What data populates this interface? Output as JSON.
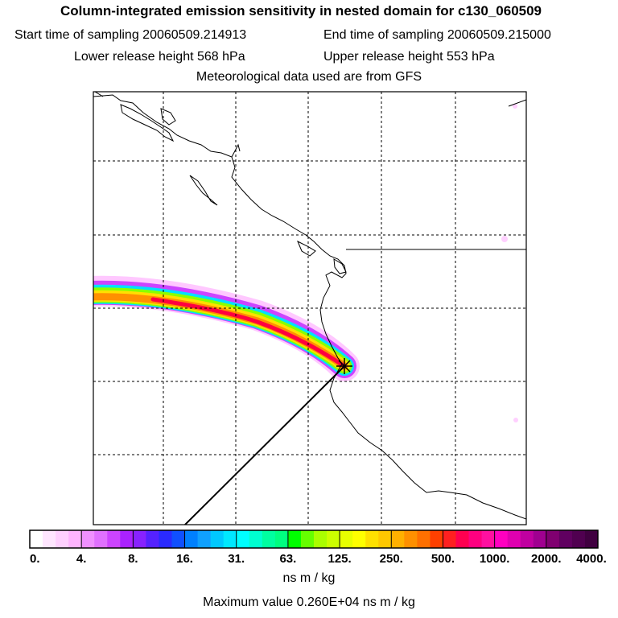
{
  "header": {
    "title": "Column-integrated emission sensitivity in nested domain for c130_060509",
    "start_sampling": "Start time of sampling 20060509.214913",
    "end_sampling": "End time of sampling 20060509.215000",
    "lower_release": "Lower release height  568 hPa",
    "upper_release": "Upper release height  553 hPa",
    "met_data": "Meteorological data used are from GFS"
  },
  "colors": {
    "coastline": "#000000",
    "grid": "#000000",
    "plume_core": "#ff0040"
  },
  "legend": {
    "tick_labels": [
      "0.",
      "4.",
      "8.",
      "16.",
      "31.",
      "63.",
      "125.",
      "250.",
      "500.",
      "1000.",
      "2000.",
      "4000."
    ],
    "units": "ns m / kg",
    "maximum": "Maximum value  0.260E+04 ns m / kg",
    "color_classes": [
      [
        "#ffffff",
        "#ffe6ff",
        "#ffd0ff",
        "#ffb4ff"
      ],
      [
        "#f090ff",
        "#e070ff",
        "#cc44ff",
        "#aa22ff"
      ],
      [
        "#8822ff",
        "#5522ff",
        "#2a2aff",
        "#1050ff"
      ],
      [
        "#0080ff",
        "#10a0ff",
        "#00c8ff",
        "#00e8ff"
      ],
      [
        "#00ffff",
        "#00ffd0",
        "#00ffa0",
        "#00ff80"
      ],
      [
        "#00ff00",
        "#66ff00",
        "#aaff00",
        "#ccff00"
      ],
      [
        "#e8ff00",
        "#ffff00",
        "#ffe000",
        "#ffc800"
      ],
      [
        "#ffb000",
        "#ff9000",
        "#ff7000",
        "#ff4000"
      ],
      [
        "#ff2020",
        "#ff0050",
        "#ff0080",
        "#ff10a0"
      ],
      [
        "#ff00c0",
        "#e000b0",
        "#c000a0",
        "#a00090"
      ],
      [
        "#800070",
        "#600060",
        "#500050",
        "#400040"
      ]
    ]
  },
  "markers": {
    "receptor": "receptor-star"
  }
}
